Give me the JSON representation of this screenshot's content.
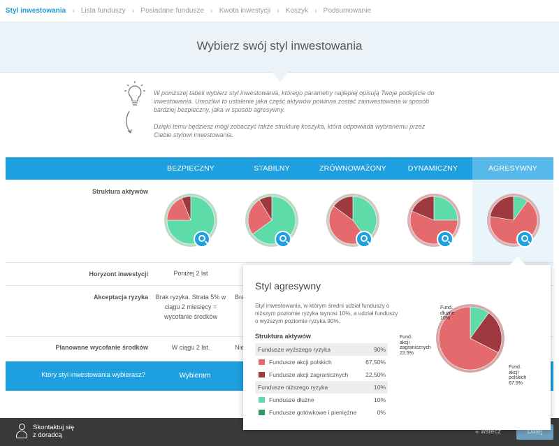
{
  "breadcrumb": [
    {
      "label": "Styl inwestowania",
      "active": true
    },
    {
      "label": "Lista funduszy",
      "active": false
    },
    {
      "label": "Posiadane fundusze",
      "active": false
    },
    {
      "label": "Kwota inwestycji",
      "active": false
    },
    {
      "label": "Koszyk",
      "active": false
    },
    {
      "label": "Podsumowanie",
      "active": false
    }
  ],
  "hero": {
    "title": "Wybierz swój styl inwestowania"
  },
  "intro": {
    "icon": "lightbulb-icon",
    "paragraph1": "W poniższej tabeli wybierz styl inwestowania, którego parametry najlepiej opisują Twoje podejście do inwestowania. Umożliwi to ustalenie jaka część aktywów powinna zostać zainwestowana w sposób bardziej bezpieczny, jaka w sposób agresywny.",
    "paragraph2": "Dzięki temu będziesz mógł zobaczyć także strukturę koszyka, która odpowiada wybranemu przez Ciebie stylowi inwestowania."
  },
  "colors": {
    "accent": "#1e9fe0",
    "accent_selected": "#57b9ea",
    "safe_green": "#5ddcaa",
    "risky_red": "#e46a6e",
    "dark_red": "#9e3a3f",
    "ring": "#bcdbc6"
  },
  "styles": [
    {
      "name": "BEZPIECZNY",
      "safe_pct": 75,
      "selected": false
    },
    {
      "name": "STABILNY",
      "safe_pct": 65,
      "selected": false
    },
    {
      "name": "ZRÓWNOWAŻONY",
      "safe_pct": 40,
      "selected": false
    },
    {
      "name": "DYNAMICZNY",
      "safe_pct": 25,
      "selected": false
    },
    {
      "name": "AGRESYWNY",
      "safe_pct": 10,
      "selected": true
    }
  ],
  "rows": {
    "structure_label": "Struktura aktywów",
    "horizon_label": "Horyzont inwestycji",
    "risk_label": "Akceptacja ryzyka",
    "withdrawal_label": "Planowane wycofanie środków",
    "horizon_values": [
      "Poniżej 2 lat"
    ],
    "risk_values": [
      "Brak ryzyka. Strata 5% w ciągu 2 miesięcy = wycofanie środków",
      "Bra"
    ],
    "withdrawal_values": [
      "W ciągu 2 lat.",
      "Nie"
    ]
  },
  "select_row": {
    "question": "Który styl inwestowania wybierasz?",
    "button": "Wybieram"
  },
  "footer": {
    "contact_line1": "Skontaktuj się",
    "contact_line2": "z doradcą",
    "back": "« wstecz",
    "next": "Dalej"
  },
  "popup": {
    "title": "Styl agresywny",
    "description": "Styl inwestowania, w którym średni udział funduszy o niższym poziomie ryzyka wynosi 10%, a udział funduszy o wyższym poziomie ryzyka 90%.",
    "subtitle": "Struktura aktywów",
    "allocation": [
      {
        "label": "Fundusze wyższego ryzyka",
        "value": "90%",
        "group": true,
        "color": ""
      },
      {
        "label": "Fundusze akcji polskich",
        "value": "67,50%",
        "group": false,
        "color": "#e46a6e"
      },
      {
        "label": "Fundusze akcji zagranicznych",
        "value": "22,50%",
        "group": false,
        "color": "#9e3a3f"
      },
      {
        "label": "Fundusze niższego ryzyka",
        "value": "10%",
        "group": true,
        "color": ""
      },
      {
        "label": "Fundusze dłużne",
        "value": "10%",
        "group": false,
        "color": "#5ddcaa"
      },
      {
        "label": "Fundusze gotówkowe i pieniężne",
        "value": "0%",
        "group": false,
        "color": "#2e9a64"
      }
    ],
    "chart_labels": {
      "debt": [
        "Fund.",
        "dłużne",
        "10%"
      ],
      "foreign": [
        "Fund.",
        "akcji",
        "zagranicznych",
        "22.5%"
      ],
      "polish": [
        "Fund.",
        "akcji",
        "polskich",
        "67.5%"
      ]
    }
  },
  "chart_data": {
    "type": "pie",
    "title": "Styl agresywny",
    "slices": [
      {
        "label": "Fund. dłużne",
        "value": 10
      },
      {
        "label": "Fund. akcji zagranicznych",
        "value": 22.5
      },
      {
        "label": "Fund. akcji polskich",
        "value": 67.5
      }
    ]
  }
}
